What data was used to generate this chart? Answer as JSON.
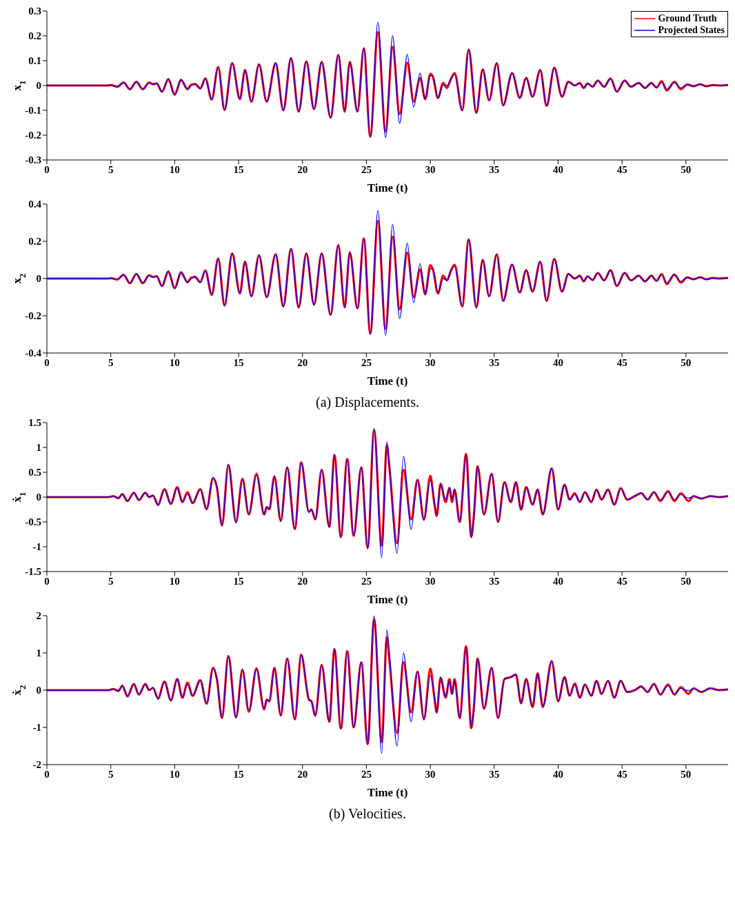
{
  "chart_data": [
    {
      "type": "line",
      "xlabel": "Time (t)",
      "ylabel": "x$_{1}$",
      "legend": "top right",
      "xlim": [
        0,
        53.3
      ],
      "xticks": [
        0,
        5,
        10,
        15,
        20,
        25,
        30,
        35,
        40,
        45,
        50
      ],
      "ylim": [
        -0.3,
        0.3
      ],
      "yticks": [
        -0.3,
        -0.2,
        -0.1,
        0,
        0.1,
        0.2,
        0.3
      ],
      "x": [
        0,
        4.8,
        5.0,
        5.5,
        6.0,
        6.5,
        7.0,
        7.5,
        8.0,
        8.3,
        8.6,
        9.0,
        9.5,
        10.0,
        10.5,
        11.0,
        11.3,
        11.6,
        12.0,
        12.4,
        12.9,
        13.4,
        13.9,
        14.5,
        15.1,
        15.5,
        16.0,
        16.6,
        17.2,
        17.9,
        18.5,
        19.1,
        19.7,
        20.3,
        20.9,
        21.5,
        22.2,
        22.8,
        23.3,
        23.7,
        24.3,
        24.8,
        25.3,
        25.9,
        26.5,
        27.05,
        27.6,
        28.2,
        28.7,
        29.2,
        29.6,
        30.0,
        30.2,
        30.6,
        31.0,
        31.3,
        31.6,
        31.9,
        32.5,
        33.0,
        33.6,
        34.1,
        34.6,
        35.2,
        35.7,
        36.4,
        37.0,
        37.5,
        38.0,
        38.6,
        39.1,
        39.7,
        40.3,
        40.8,
        41.3,
        41.7,
        42.0,
        42.3,
        42.7,
        43.1,
        43.6,
        44.1,
        44.6,
        45.2,
        45.7,
        46.3,
        46.8,
        47.3,
        47.7,
        48.1,
        48.5,
        49.1,
        49.6,
        50.1,
        50.6,
        51.1,
        51.6,
        52.1,
        52.6,
        53.3
      ],
      "series": [
        {
          "name": "Ground Truth",
          "color": "#ff0000",
          "values": [
            0,
            0,
            0.002,
            -0.005,
            0.012,
            -0.015,
            0.015,
            -0.015,
            0.012,
            0.005,
            0.008,
            -0.025,
            0.024,
            -0.035,
            0.022,
            -0.015,
            0.003,
            0.005,
            -0.012,
            0.028,
            -0.057,
            0.075,
            -0.098,
            0.09,
            -0.055,
            0.062,
            -0.065,
            0.085,
            -0.065,
            0.09,
            -0.1,
            0.11,
            -0.105,
            0.097,
            -0.095,
            0.095,
            -0.13,
            0.123,
            -0.105,
            0.095,
            -0.105,
            0.15,
            -0.205,
            0.215,
            -0.185,
            0.155,
            -0.115,
            0.092,
            -0.065,
            0.03,
            -0.055,
            0.047,
            0.035,
            -0.05,
            0.01,
            -0.01,
            0.025,
            0.05,
            -0.1,
            0.145,
            -0.11,
            0.065,
            -0.06,
            0.09,
            -0.08,
            0.05,
            -0.05,
            0.03,
            -0.045,
            0.062,
            -0.082,
            0.072,
            -0.045,
            0.015,
            0,
            0.01,
            -0.01,
            0.008,
            -0.005,
            0.02,
            -0.005,
            0.028,
            -0.025,
            0.02,
            -0.005,
            0.01,
            -0.01,
            0.01,
            -0.008,
            0.018,
            -0.02,
            0.015,
            -0.015,
            0.004,
            -0.003,
            0.005,
            -0.003,
            0.002,
            0,
            0.002
          ]
        },
        {
          "name": "Projected States",
          "color": "#0000ff",
          "values": [
            0,
            0,
            0.002,
            -0.005,
            0.012,
            -0.015,
            0.015,
            -0.015,
            0.01,
            0.005,
            0.01,
            -0.025,
            0.028,
            -0.04,
            0.025,
            -0.015,
            0,
            0.008,
            -0.012,
            0.028,
            -0.055,
            0.072,
            -0.1,
            0.09,
            -0.055,
            0.062,
            -0.065,
            0.085,
            -0.065,
            0.09,
            -0.1,
            0.11,
            -0.105,
            0.097,
            -0.095,
            0.095,
            -0.13,
            0.123,
            -0.105,
            0.095,
            -0.105,
            0.15,
            -0.21,
            0.255,
            -0.21,
            0.2,
            -0.152,
            0.125,
            -0.087,
            0.05,
            -0.055,
            0.04,
            0.04,
            -0.052,
            0.002,
            0,
            0.025,
            0.045,
            -0.1,
            0.145,
            -0.11,
            0.065,
            -0.06,
            0.09,
            -0.08,
            0.05,
            -0.05,
            0.03,
            -0.045,
            0.062,
            -0.082,
            0.072,
            -0.045,
            0.015,
            0,
            0.01,
            -0.01,
            0.008,
            -0.005,
            0.02,
            -0.005,
            0.028,
            -0.025,
            0.02,
            -0.005,
            0.01,
            -0.01,
            0.01,
            -0.008,
            0.012,
            -0.015,
            0.012,
            -0.01,
            0.004,
            -0.003,
            0.005,
            -0.003,
            0.002,
            0,
            0.002
          ]
        }
      ]
    },
    {
      "type": "line",
      "xlabel": "Time (t)",
      "ylabel": "x$_{2}$",
      "annotations": [
        "(a) Displacements."
      ],
      "xlim": [
        0,
        53.3
      ],
      "xticks": [
        0,
        5,
        10,
        15,
        20,
        25,
        30,
        35,
        40,
        45,
        50
      ],
      "ylim": [
        -0.4,
        0.4
      ],
      "yticks": [
        -0.4,
        -0.2,
        0,
        0.2,
        0.4
      ],
      "x": [
        0,
        4.8,
        5.0,
        5.5,
        6.0,
        6.5,
        7.0,
        7.5,
        8.0,
        8.3,
        8.6,
        9.0,
        9.5,
        10.0,
        10.5,
        11.0,
        11.3,
        11.6,
        12.0,
        12.4,
        12.9,
        13.4,
        13.9,
        14.5,
        15.1,
        15.5,
        16.0,
        16.6,
        17.2,
        17.9,
        18.5,
        19.1,
        19.7,
        20.3,
        20.9,
        21.5,
        22.2,
        22.8,
        23.3,
        23.7,
        24.3,
        24.8,
        25.3,
        25.9,
        26.5,
        27.05,
        27.6,
        28.2,
        28.7,
        29.2,
        29.6,
        30.0,
        30.2,
        30.6,
        31.0,
        31.3,
        31.6,
        31.9,
        32.5,
        33.0,
        33.6,
        34.1,
        34.6,
        35.2,
        35.7,
        36.4,
        37.0,
        37.5,
        38.0,
        38.6,
        39.1,
        39.7,
        40.3,
        40.8,
        41.3,
        41.7,
        42.0,
        42.3,
        42.7,
        43.1,
        43.6,
        44.1,
        44.6,
        45.2,
        45.7,
        46.3,
        46.8,
        47.3,
        47.7,
        48.1,
        48.5,
        49.1,
        49.6,
        50.1,
        50.6,
        51.1,
        51.6,
        52.1,
        52.6,
        53.3
      ],
      "series": [
        {
          "color": "#ff0000",
          "values": [
            0,
            0,
            0.002,
            -0.005,
            0.02,
            -0.025,
            0.025,
            -0.025,
            0.018,
            0.008,
            0.012,
            -0.04,
            0.036,
            -0.05,
            0.032,
            -0.02,
            0.005,
            0.008,
            -0.02,
            0.043,
            -0.088,
            0.108,
            -0.145,
            0.135,
            -0.08,
            0.09,
            -0.095,
            0.125,
            -0.1,
            0.13,
            -0.15,
            0.16,
            -0.155,
            0.135,
            -0.14,
            0.135,
            -0.195,
            0.18,
            -0.155,
            0.14,
            -0.16,
            0.215,
            -0.295,
            0.31,
            -0.27,
            0.225,
            -0.165,
            0.14,
            -0.1,
            0.05,
            -0.085,
            0.072,
            0.05,
            -0.08,
            0.015,
            -0.01,
            0.04,
            0.075,
            -0.15,
            0.21,
            -0.155,
            0.1,
            -0.095,
            0.13,
            -0.12,
            0.075,
            -0.075,
            0.045,
            -0.07,
            0.09,
            -0.12,
            0.105,
            -0.07,
            0.025,
            0,
            0.015,
            -0.015,
            0.012,
            -0.008,
            0.03,
            -0.01,
            0.045,
            -0.04,
            0.03,
            -0.01,
            0.015,
            -0.015,
            0.015,
            -0.012,
            0.025,
            -0.03,
            0.022,
            -0.022,
            0.006,
            -0.004,
            0.007,
            -0.004,
            0.003,
            0,
            0.003
          ]
        },
        {
          "color": "#0000ff",
          "values": [
            0,
            0,
            0.002,
            -0.005,
            0.02,
            -0.025,
            0.025,
            -0.022,
            0.015,
            0.008,
            0.015,
            -0.04,
            0.042,
            -0.055,
            0.037,
            -0.02,
            0,
            0.012,
            -0.02,
            0.043,
            -0.085,
            0.105,
            -0.145,
            0.135,
            -0.08,
            0.09,
            -0.095,
            0.125,
            -0.1,
            0.13,
            -0.15,
            0.16,
            -0.155,
            0.135,
            -0.14,
            0.135,
            -0.195,
            0.18,
            -0.155,
            0.14,
            -0.16,
            0.215,
            -0.3,
            0.365,
            -0.305,
            0.29,
            -0.215,
            0.19,
            -0.13,
            0.08,
            -0.085,
            0.05,
            0.055,
            -0.075,
            0,
            -0.01,
            0.04,
            0.065,
            -0.145,
            0.21,
            -0.155,
            0.1,
            -0.095,
            0.13,
            -0.12,
            0.075,
            -0.075,
            0.045,
            -0.07,
            0.09,
            -0.12,
            0.105,
            -0.07,
            0.025,
            0,
            0.015,
            -0.015,
            0.012,
            -0.008,
            0.03,
            -0.01,
            0.045,
            -0.04,
            0.03,
            -0.01,
            0.015,
            -0.015,
            0.015,
            -0.012,
            0.018,
            -0.022,
            0.018,
            -0.015,
            0.006,
            -0.004,
            0.007,
            -0.004,
            0.003,
            0,
            0.003
          ]
        }
      ]
    },
    {
      "type": "line",
      "xlabel": "Time (t)",
      "ylabel": "ẋ$_{1}$",
      "xlim": [
        0,
        53.3
      ],
      "xticks": [
        0,
        5,
        10,
        15,
        20,
        25,
        30,
        35,
        40,
        45,
        50
      ],
      "ylim": [
        -1.5,
        1.5
      ],
      "yticks": [
        -1.5,
        -1,
        -0.5,
        0,
        0.5,
        1,
        1.5
      ],
      "x": [
        0,
        4.8,
        5.2,
        5.6,
        5.9,
        6.3,
        6.8,
        7.2,
        7.7,
        8.0,
        8.3,
        8.7,
        9.2,
        9.7,
        10.2,
        10.6,
        11.0,
        11.4,
        12.0,
        12.5,
        13.0,
        13.3,
        13.7,
        14.2,
        14.8,
        15.3,
        15.8,
        16.4,
        17.0,
        17.2,
        17.4,
        17.8,
        18.3,
        18.8,
        19.4,
        19.9,
        20.5,
        20.7,
        21.0,
        21.5,
        22.1,
        22.5,
        23.0,
        23.5,
        24.0,
        24.6,
        25.1,
        25.6,
        26.2,
        26.6,
        26.8,
        27.4,
        27.9,
        28.5,
        29.0,
        29.5,
        30.0,
        30.3,
        30.5,
        30.8,
        31.2,
        31.5,
        31.7,
        31.9,
        32.3,
        32.8,
        33.2,
        33.4,
        33.7,
        34.2,
        34.8,
        35.3,
        35.8,
        36.3,
        36.7,
        37.1,
        37.5,
        38.0,
        38.4,
        38.8,
        39.5,
        40.0,
        40.5,
        40.9,
        41.3,
        41.7,
        42.1,
        42.6,
        43.0,
        43.4,
        43.9,
        44.4,
        44.9,
        45.4,
        46.0,
        46.5,
        47.0,
        47.5,
        48.0,
        48.6,
        49.1,
        49.6,
        50.2,
        50.6,
        51.2,
        51.9,
        52.6,
        53.3
      ],
      "series": [
        {
          "color": "#ff0000",
          "values": [
            0,
            0,
            0.02,
            -0.02,
            0.06,
            -0.08,
            0.09,
            -0.06,
            0.09,
            0,
            0.03,
            -0.15,
            0.16,
            -0.13,
            0.2,
            -0.1,
            0.1,
            -0.12,
            0.16,
            -0.24,
            0.38,
            0.2,
            -0.57,
            0.65,
            -0.5,
            0.37,
            -0.35,
            0.47,
            -0.35,
            -0.2,
            -0.25,
            0.42,
            -0.48,
            0.6,
            -0.64,
            0.7,
            -0.3,
            -0.25,
            -0.45,
            0.55,
            -0.6,
            0.85,
            -0.8,
            0.77,
            -0.78,
            0.6,
            -1.02,
            1.35,
            -0.98,
            1.05,
            0.6,
            -0.93,
            0.55,
            -0.45,
            0.35,
            -0.45,
            0.43,
            -0.1,
            -0.38,
            0.27,
            -0.1,
            0.18,
            -0.1,
            0.15,
            -0.5,
            0.87,
            -0.8,
            -0.4,
            0.62,
            -0.35,
            0.47,
            -0.5,
            0.3,
            -0.1,
            0.3,
            -0.25,
            0.2,
            -0.15,
            0.15,
            -0.35,
            0.58,
            -0.25,
            0.25,
            -0.05,
            0.08,
            -0.1,
            0.1,
            -0.1,
            0.15,
            -0.05,
            0.15,
            -0.15,
            0.18,
            -0.05,
            0.02,
            0.08,
            -0.05,
            0.1,
            -0.08,
            0.12,
            -0.08,
            0.08,
            -0.08,
            0.02,
            -0.03,
            0.02,
            0,
            0.02
          ]
        },
        {
          "color": "#0000ff",
          "values": [
            0,
            0,
            0.02,
            -0.02,
            0.06,
            -0.08,
            0.08,
            -0.05,
            0.08,
            0,
            0.04,
            -0.17,
            0.15,
            -0.15,
            0.19,
            -0.1,
            0.06,
            -0.12,
            0.15,
            -0.25,
            0.4,
            0.2,
            -0.58,
            0.65,
            -0.52,
            0.35,
            -0.35,
            0.45,
            -0.35,
            -0.2,
            -0.25,
            0.42,
            -0.48,
            0.6,
            -0.65,
            0.7,
            -0.3,
            -0.25,
            -0.45,
            0.55,
            -0.6,
            0.85,
            -0.82,
            0.77,
            -0.78,
            0.6,
            -1.05,
            1.38,
            -1.22,
            1.12,
            0.6,
            -1.13,
            0.82,
            -0.65,
            0.35,
            -0.47,
            0.35,
            -0.05,
            -0.35,
            0.25,
            -0.05,
            0.2,
            -0.05,
            0.15,
            -0.5,
            0.85,
            -0.82,
            -0.4,
            0.62,
            -0.35,
            0.47,
            -0.5,
            0.3,
            -0.1,
            0.3,
            -0.25,
            0.2,
            -0.15,
            0.15,
            -0.35,
            0.58,
            -0.25,
            0.25,
            -0.05,
            0.05,
            -0.1,
            0.1,
            -0.1,
            0.15,
            -0.05,
            0.15,
            -0.15,
            0.18,
            -0.05,
            0.02,
            0.08,
            -0.05,
            0.1,
            -0.05,
            0.1,
            -0.05,
            0.05,
            -0.02,
            0.02,
            -0.03,
            0.02,
            0,
            0.02
          ]
        }
      ]
    },
    {
      "type": "line",
      "xlabel": "Time (t)",
      "ylabel": "ẋ$_{2}$",
      "annotations": [
        "(b) Velocities."
      ],
      "xlim": [
        0,
        53.3
      ],
      "xticks": [
        0,
        5,
        10,
        15,
        20,
        25,
        30,
        35,
        40,
        45,
        50
      ],
      "ylim": [
        -2,
        2
      ],
      "yticks": [
        -2,
        -1,
        0,
        1,
        2
      ],
      "x": [
        0,
        4.8,
        5.2,
        5.6,
        5.9,
        6.3,
        6.8,
        7.2,
        7.7,
        8.0,
        8.3,
        8.7,
        9.2,
        9.7,
        10.2,
        10.6,
        11.0,
        11.4,
        12.0,
        12.5,
        13.0,
        13.3,
        13.7,
        14.2,
        14.8,
        15.3,
        15.8,
        16.4,
        17.0,
        17.2,
        17.4,
        17.8,
        18.3,
        18.8,
        19.4,
        19.9,
        20.5,
        20.7,
        21.0,
        21.5,
        22.1,
        22.5,
        23.0,
        23.5,
        24.0,
        24.6,
        25.1,
        25.6,
        26.2,
        26.6,
        26.8,
        27.4,
        27.9,
        28.5,
        29.0,
        29.5,
        30.0,
        30.3,
        30.5,
        30.8,
        31.2,
        31.5,
        31.7,
        31.9,
        32.3,
        32.8,
        33.2,
        33.4,
        33.7,
        34.2,
        34.8,
        35.3,
        35.8,
        36.3,
        36.7,
        37.1,
        37.5,
        38.0,
        38.4,
        38.8,
        39.5,
        40.0,
        40.5,
        40.9,
        41.3,
        41.7,
        42.1,
        42.6,
        43.0,
        43.4,
        43.9,
        44.4,
        44.9,
        45.4,
        46.0,
        46.5,
        47.0,
        47.5,
        48.0,
        48.6,
        49.1,
        49.6,
        50.2,
        50.6,
        51.2,
        51.9,
        52.6,
        53.3
      ],
      "series": [
        {
          "color": "#ff0000",
          "values": [
            0,
            0,
            0.03,
            -0.02,
            0.12,
            -0.17,
            0.17,
            -0.12,
            0.17,
            0,
            0.06,
            -0.22,
            0.23,
            -0.27,
            0.3,
            -0.2,
            0.2,
            -0.15,
            0.27,
            -0.36,
            0.6,
            0.3,
            -0.75,
            0.92,
            -0.73,
            0.55,
            -0.58,
            0.58,
            -0.52,
            -0.25,
            -0.3,
            0.6,
            -0.68,
            0.85,
            -0.78,
            0.95,
            -0.25,
            -0.3,
            -0.68,
            0.68,
            -0.85,
            1.1,
            -1.03,
            1.05,
            -1.0,
            0.75,
            -1.45,
            1.9,
            -1.4,
            1.42,
            0.8,
            -1.15,
            0.75,
            -0.6,
            0.5,
            -0.78,
            0.58,
            -0.15,
            -0.6,
            0.33,
            -0.2,
            0.3,
            -0.1,
            0.3,
            -0.75,
            1.18,
            -1.02,
            -0.5,
            0.85,
            -0.5,
            0.6,
            -0.75,
            0.3,
            0.35,
            0.42,
            -0.35,
            0.3,
            -0.45,
            0.45,
            -0.45,
            0.78,
            -0.3,
            0.35,
            -0.15,
            0.18,
            -0.2,
            0.15,
            -0.15,
            0.25,
            -0.1,
            0.25,
            -0.2,
            0.25,
            -0.05,
            0,
            0.1,
            -0.05,
            0.17,
            -0.12,
            0.15,
            -0.12,
            0.08,
            -0.1,
            0.05,
            -0.05,
            0.05,
            0,
            0.02
          ]
        },
        {
          "color": "#0000ff",
          "values": [
            0,
            0,
            0.03,
            -0.02,
            0.12,
            -0.15,
            0.15,
            -0.1,
            0.15,
            0,
            0.07,
            -0.25,
            0.23,
            -0.3,
            0.3,
            -0.2,
            0.15,
            -0.15,
            0.25,
            -0.38,
            0.58,
            0.3,
            -0.75,
            0.9,
            -0.75,
            0.55,
            -0.55,
            0.6,
            -0.5,
            -0.25,
            -0.3,
            0.6,
            -0.7,
            0.85,
            -0.8,
            0.95,
            -0.25,
            -0.3,
            -0.7,
            0.65,
            -0.85,
            1.12,
            -1.05,
            1.05,
            -1.0,
            0.75,
            -1.45,
            2.0,
            -1.7,
            1.62,
            1.0,
            -1.5,
            1.0,
            -0.85,
            0.5,
            -0.8,
            0.4,
            -0.1,
            -0.6,
            0.35,
            -0.2,
            0.25,
            -0.1,
            0.25,
            -0.75,
            1.15,
            -1.0,
            -0.5,
            0.85,
            -0.5,
            0.6,
            -0.75,
            0.3,
            0.35,
            0.42,
            -0.35,
            0.3,
            -0.45,
            0.45,
            -0.45,
            0.78,
            -0.3,
            0.35,
            -0.15,
            0.15,
            -0.2,
            0.15,
            -0.15,
            0.25,
            -0.1,
            0.25,
            -0.2,
            0.25,
            -0.05,
            0,
            0.1,
            -0.05,
            0.15,
            -0.1,
            0.12,
            -0.1,
            0.05,
            -0.02,
            0.05,
            -0.05,
            0.05,
            0,
            0.02
          ]
        }
      ]
    }
  ]
}
